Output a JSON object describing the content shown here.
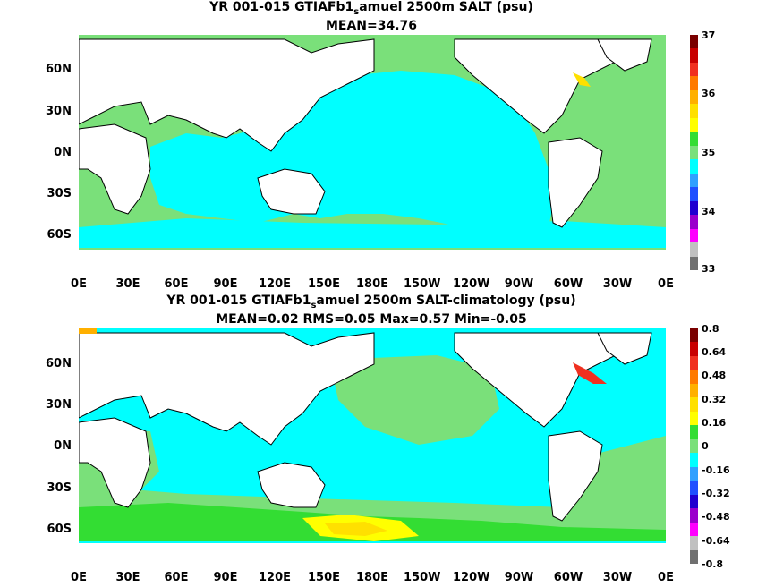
{
  "panels": [
    {
      "title_pre": "YR 001-015 GTIAFb1",
      "title_sub": "s",
      "title_post": "amuel 2500m SALT (psu)",
      "stats": "MEAN=34.76",
      "colorbar_labels": [
        "37",
        "36",
        "35",
        "34",
        "33"
      ],
      "colorbar_colors": [
        "#7a0000",
        "#c80000",
        "#f03020",
        "#ff7a00",
        "#ffb000",
        "#ffe000",
        "#ffff00",
        "#33dd33",
        "#7ae07a",
        "#00ffff",
        "#30a0ff",
        "#2050ff",
        "#2000d0",
        "#9a00cc",
        "#ff00ff",
        "#c0c0c0",
        "#707070"
      ]
    },
    {
      "title_pre": "YR 001-015 GTIAFb1",
      "title_sub": "s",
      "title_post": "amuel 2500m SALT-climatology (psu)",
      "stats": "MEAN=0.02   RMS=0.05   Max=0.57   Min=-0.05",
      "colorbar_labels": [
        "0.8",
        "0.64",
        "0.48",
        "0.32",
        "0.16",
        "0",
        "-0.16",
        "-0.32",
        "-0.48",
        "-0.64",
        "-0.8"
      ],
      "colorbar_colors": [
        "#7a0000",
        "#c80000",
        "#f03020",
        "#ff7a00",
        "#ffb000",
        "#ffe000",
        "#ffff00",
        "#33dd33",
        "#7ae07a",
        "#00ffff",
        "#30a0ff",
        "#2050ff",
        "#2000d0",
        "#9a00cc",
        "#ff00ff",
        "#c0c0c0",
        "#707070"
      ]
    }
  ],
  "lat_labels": [
    "60N",
    "30N",
    "0N",
    "30S",
    "60S"
  ],
  "lon_labels": [
    "0E",
    "30E",
    "60E",
    "90E",
    "120E",
    "150E",
    "180E",
    "150W",
    "120W",
    "90W",
    "60W",
    "30W",
    "0E"
  ]
}
